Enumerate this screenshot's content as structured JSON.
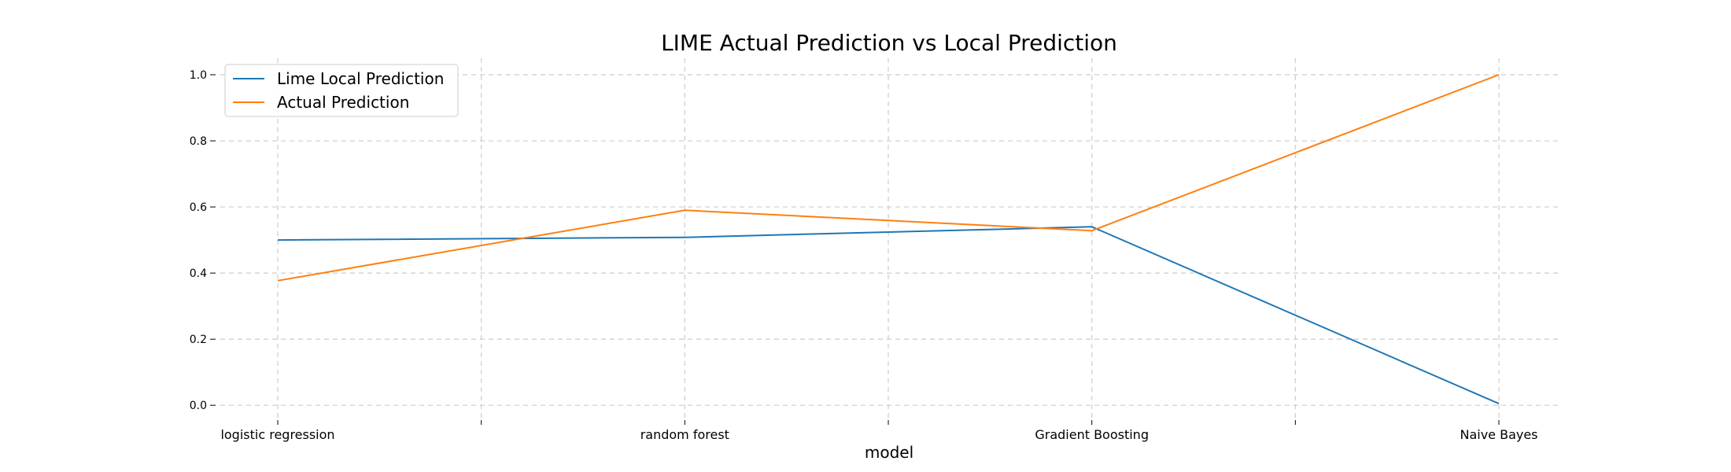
{
  "chart_data": {
    "type": "line",
    "title": "LIME Actual Prediction vs Local Prediction",
    "xlabel": "model",
    "ylabel": "",
    "categories": [
      "logistic regression",
      "random forest",
      "Gradient Boosting",
      "Naive Bayes"
    ],
    "yticks": [
      "0.0",
      "0.2",
      "0.4",
      "0.6",
      "0.8",
      "1.0"
    ],
    "ylim": [
      -0.04,
      1.05
    ],
    "grid": true,
    "legend_position": "top-left",
    "series": [
      {
        "name": "Lime Local Prediction",
        "color": "#1f77b4",
        "values": [
          0.5,
          0.508,
          0.54,
          0.005
        ]
      },
      {
        "name": "Actual Prediction",
        "color": "#ff7f0e",
        "values": [
          0.377,
          0.59,
          0.528,
          1.0
        ]
      }
    ]
  }
}
